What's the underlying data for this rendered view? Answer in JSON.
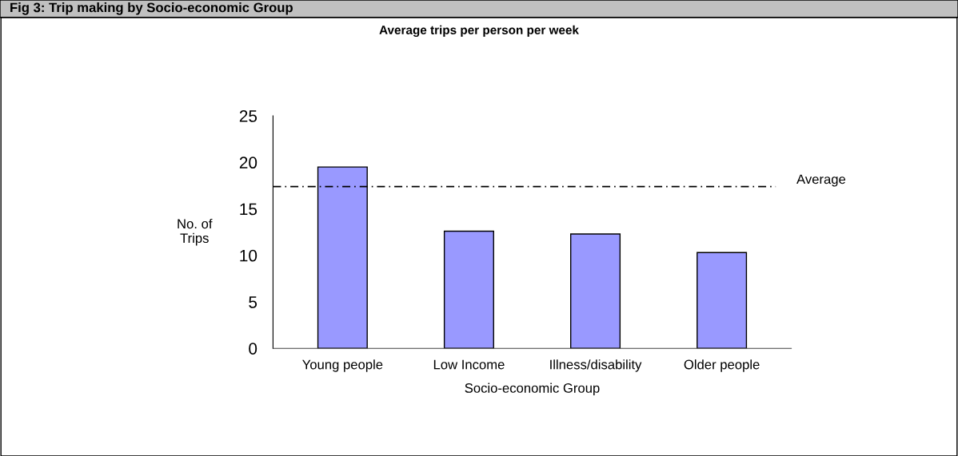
{
  "chart_data": {
    "type": "bar",
    "title": "Average trips per person per week",
    "categories": [
      "Young people",
      "Low Income",
      "Illness/disability",
      "Older people"
    ],
    "values": [
      19.5,
      12.6,
      12.3,
      10.3
    ],
    "color": "#9999ff",
    "xlabel": "Socio-economic Group",
    "ylabel": "No. of\nTrips",
    "ylim": [
      0,
      25
    ],
    "yticks": [
      0,
      5,
      10,
      15,
      20,
      25
    ],
    "grid": false,
    "ref_lines": [
      {
        "axis": "y",
        "value": 17.4,
        "label": "Average",
        "color": "#000000",
        "line_style": "dashdot"
      }
    ],
    "annotations": [
      "Fig 3: Trip making by Socio-economic Group"
    ]
  }
}
